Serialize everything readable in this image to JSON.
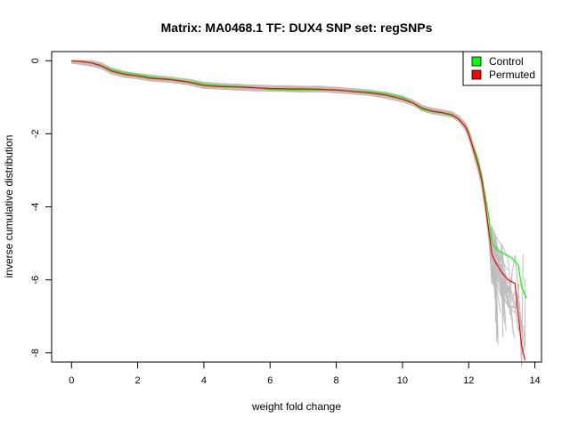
{
  "chart_data": {
    "type": "line",
    "title": "Matrix: MA0468.1 TF: DUX4 SNP set: regSNPs",
    "xlabel": "weight fold change",
    "ylabel": "inverse cumulative distribution",
    "xlim": [
      -0.6,
      14.2
    ],
    "ylim": [
      -8.25,
      0.25
    ],
    "xticks": [
      0,
      2,
      4,
      6,
      8,
      10,
      12,
      14
    ],
    "yticks": [
      0,
      -2,
      -4,
      -6,
      -8
    ],
    "legend": {
      "position": "top-right",
      "entries": [
        {
          "label": "Control",
          "color": "#00ff00"
        },
        {
          "label": "Permuted",
          "color": "#ff0000"
        }
      ]
    },
    "series": [
      {
        "name": "Control",
        "color": "#00ff00",
        "x": [
          0,
          0.3,
          0.6,
          0.9,
          1.2,
          1.6,
          2.0,
          2.4,
          3.0,
          3.5,
          4.0,
          4.5,
          5.0,
          5.5,
          6.0,
          6.5,
          7.0,
          7.5,
          8.0,
          8.5,
          9.0,
          9.5,
          10.0,
          10.3,
          10.6,
          10.9,
          11.2,
          11.5,
          11.7,
          11.9,
          12.0,
          12.1,
          12.2,
          12.3,
          12.4,
          12.5,
          12.6,
          12.7,
          12.8,
          12.9,
          13.1,
          13.3,
          13.5,
          13.6,
          13.75
        ],
        "y": [
          0,
          -0.02,
          -0.06,
          -0.13,
          -0.25,
          -0.33,
          -0.38,
          -0.45,
          -0.5,
          -0.56,
          -0.64,
          -0.68,
          -0.7,
          -0.73,
          -0.79,
          -0.8,
          -0.8,
          -0.8,
          -0.8,
          -0.83,
          -0.85,
          -0.9,
          -1.0,
          -1.15,
          -1.33,
          -1.4,
          -1.43,
          -1.5,
          -1.6,
          -1.8,
          -1.95,
          -2.3,
          -2.5,
          -2.8,
          -3.2,
          -3.7,
          -4.2,
          -5.0,
          -5.1,
          -5.2,
          -5.3,
          -5.4,
          -5.6,
          -6.2,
          -6.5
        ]
      },
      {
        "name": "Permuted",
        "color": "#ff0000",
        "x": [
          0,
          0.3,
          0.6,
          0.9,
          1.2,
          1.6,
          2.0,
          2.4,
          3.0,
          3.5,
          4.0,
          4.5,
          5.0,
          5.5,
          6.0,
          6.5,
          7.0,
          7.5,
          8.0,
          8.5,
          9.0,
          9.5,
          10.0,
          10.3,
          10.6,
          10.9,
          11.2,
          11.5,
          11.7,
          11.9,
          12.0,
          12.1,
          12.2,
          12.3,
          12.4,
          12.5,
          12.6,
          12.7,
          12.8,
          13.0,
          13.2,
          13.4,
          13.5,
          13.6,
          13.7
        ],
        "y": [
          0,
          -0.02,
          -0.06,
          -0.14,
          -0.28,
          -0.37,
          -0.42,
          -0.48,
          -0.52,
          -0.58,
          -0.68,
          -0.71,
          -0.72,
          -0.74,
          -0.76,
          -0.77,
          -0.77,
          -0.78,
          -0.8,
          -0.84,
          -0.88,
          -0.94,
          -1.05,
          -1.15,
          -1.3,
          -1.38,
          -1.42,
          -1.48,
          -1.6,
          -1.8,
          -2.0,
          -2.3,
          -2.6,
          -2.9,
          -3.3,
          -3.9,
          -4.6,
          -5.3,
          -5.5,
          -5.8,
          -6.0,
          -6.1,
          -7.0,
          -7.8,
          -8.2
        ]
      }
    ]
  }
}
